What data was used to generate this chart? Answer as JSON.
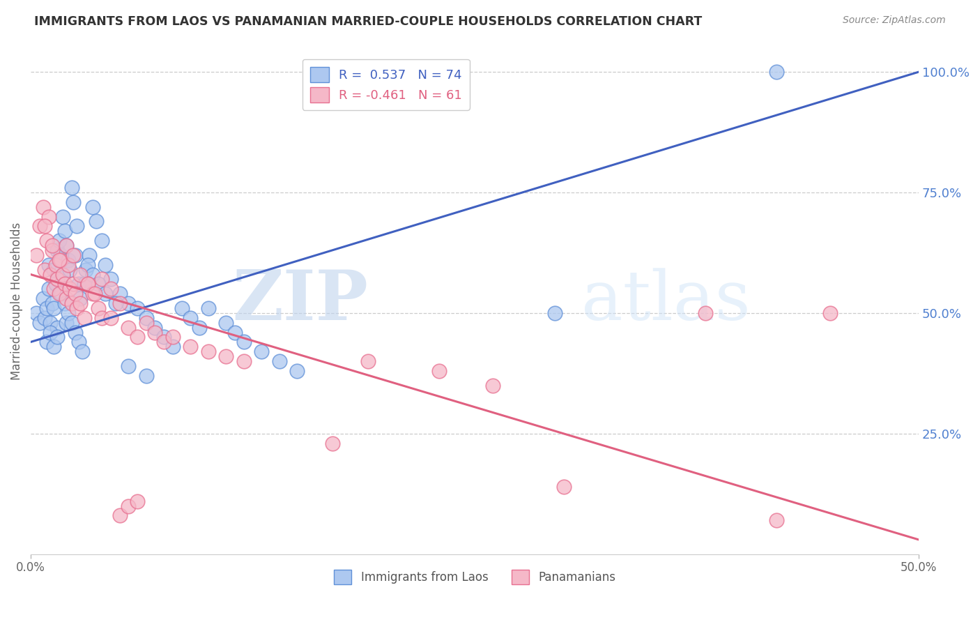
{
  "title": "IMMIGRANTS FROM LAOS VS PANAMANIAN MARRIED-COUPLE HOUSEHOLDS CORRELATION CHART",
  "source": "Source: ZipAtlas.com",
  "ylabel_left": "Married-couple Households",
  "legend_label_blue": "Immigrants from Laos",
  "legend_label_pink": "Panamanians",
  "xmin": 0.0,
  "xmax": 0.5,
  "ymin": 0.0,
  "ymax": 1.05,
  "xticks": [
    0.0,
    0.5
  ],
  "xticklabels": [
    "0.0%",
    "50.0%"
  ],
  "yticks_right": [
    0.25,
    0.5,
    0.75,
    1.0
  ],
  "yticklabels_right": [
    "25.0%",
    "50.0%",
    "75.0%",
    "100.0%"
  ],
  "blue_R": 0.537,
  "blue_N": 74,
  "pink_R": -0.461,
  "pink_N": 61,
  "blue_color": "#adc8f0",
  "pink_color": "#f5b8c8",
  "blue_edge_color": "#6090d8",
  "pink_edge_color": "#e87090",
  "blue_line_color": "#4060c0",
  "pink_line_color": "#e06080",
  "watermark_text": "ZIPatlas",
  "watermark_zip_color": "#c8d8f0",
  "watermark_atlas_color": "#d8e8f8",
  "background_color": "#ffffff",
  "grid_color": "#cccccc",
  "right_axis_color": "#5080d0",
  "title_color": "#333333",
  "source_color": "#888888",
  "ylabel_color": "#666666",
  "blue_line_intercept": 0.44,
  "blue_line_slope": 1.12,
  "pink_line_intercept": 0.58,
  "pink_line_slope": -1.1,
  "blue_scatter_x": [
    0.003,
    0.005,
    0.007,
    0.008,
    0.009,
    0.01,
    0.01,
    0.011,
    0.012,
    0.013,
    0.013,
    0.014,
    0.015,
    0.015,
    0.016,
    0.017,
    0.018,
    0.018,
    0.019,
    0.02,
    0.02,
    0.021,
    0.022,
    0.023,
    0.024,
    0.025,
    0.026,
    0.027,
    0.028,
    0.03,
    0.031,
    0.033,
    0.035,
    0.037,
    0.04,
    0.042,
    0.045,
    0.05,
    0.055,
    0.06,
    0.065,
    0.07,
    0.075,
    0.08,
    0.085,
    0.09,
    0.095,
    0.1,
    0.11,
    0.115,
    0.12,
    0.13,
    0.14,
    0.15,
    0.009,
    0.011,
    0.013,
    0.015,
    0.017,
    0.019,
    0.021,
    0.023,
    0.025,
    0.027,
    0.029,
    0.032,
    0.035,
    0.038,
    0.042,
    0.048,
    0.055,
    0.065,
    0.295,
    0.42
  ],
  "blue_scatter_y": [
    0.5,
    0.48,
    0.53,
    0.49,
    0.51,
    0.55,
    0.6,
    0.48,
    0.52,
    0.51,
    0.59,
    0.56,
    0.47,
    0.63,
    0.65,
    0.62,
    0.58,
    0.7,
    0.67,
    0.64,
    0.48,
    0.61,
    0.59,
    0.76,
    0.73,
    0.62,
    0.68,
    0.56,
    0.53,
    0.56,
    0.59,
    0.62,
    0.72,
    0.69,
    0.65,
    0.6,
    0.57,
    0.54,
    0.52,
    0.51,
    0.49,
    0.47,
    0.45,
    0.43,
    0.51,
    0.49,
    0.47,
    0.51,
    0.48,
    0.46,
    0.44,
    0.42,
    0.4,
    0.38,
    0.44,
    0.46,
    0.43,
    0.45,
    0.54,
    0.52,
    0.5,
    0.48,
    0.46,
    0.44,
    0.42,
    0.6,
    0.58,
    0.56,
    0.54,
    0.52,
    0.39,
    0.37,
    0.5,
    1.0
  ],
  "pink_scatter_x": [
    0.003,
    0.005,
    0.007,
    0.008,
    0.009,
    0.01,
    0.011,
    0.012,
    0.013,
    0.014,
    0.015,
    0.016,
    0.017,
    0.018,
    0.019,
    0.02,
    0.021,
    0.022,
    0.023,
    0.024,
    0.025,
    0.026,
    0.028,
    0.03,
    0.032,
    0.035,
    0.038,
    0.04,
    0.045,
    0.05,
    0.055,
    0.06,
    0.065,
    0.07,
    0.075,
    0.08,
    0.09,
    0.1,
    0.11,
    0.12,
    0.008,
    0.012,
    0.016,
    0.02,
    0.024,
    0.028,
    0.032,
    0.036,
    0.04,
    0.045,
    0.05,
    0.055,
    0.06,
    0.19,
    0.23,
    0.26,
    0.38,
    0.42,
    0.45,
    0.3,
    0.17
  ],
  "pink_scatter_y": [
    0.62,
    0.68,
    0.72,
    0.59,
    0.65,
    0.7,
    0.58,
    0.63,
    0.55,
    0.6,
    0.57,
    0.54,
    0.61,
    0.58,
    0.56,
    0.53,
    0.6,
    0.55,
    0.52,
    0.56,
    0.54,
    0.51,
    0.52,
    0.49,
    0.56,
    0.54,
    0.51,
    0.49,
    0.49,
    0.52,
    0.47,
    0.45,
    0.48,
    0.46,
    0.44,
    0.45,
    0.43,
    0.42,
    0.41,
    0.4,
    0.68,
    0.64,
    0.61,
    0.64,
    0.62,
    0.58,
    0.56,
    0.54,
    0.57,
    0.55,
    0.08,
    0.1,
    0.11,
    0.4,
    0.38,
    0.35,
    0.5,
    0.07,
    0.5,
    0.14,
    0.23
  ]
}
